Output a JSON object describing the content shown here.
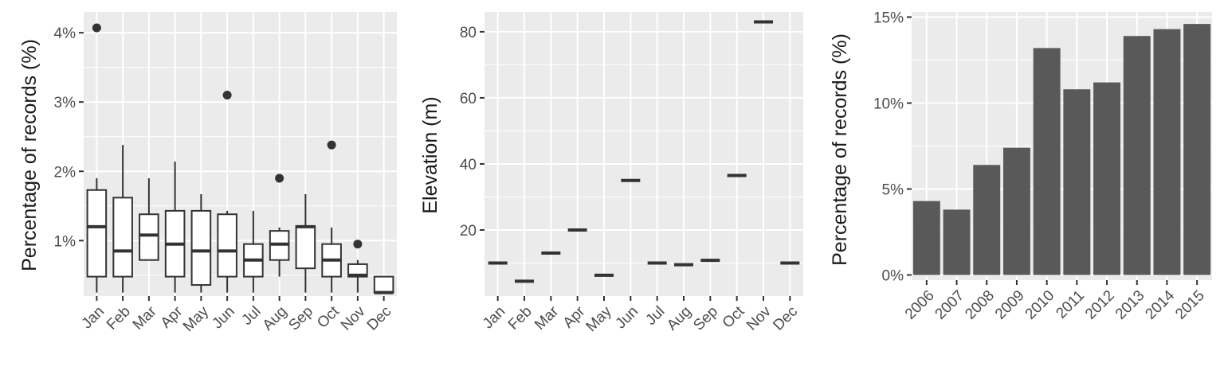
{
  "colors": {
    "panel_bg": "#ebebeb",
    "grid": "#ffffff",
    "tick": "#333333",
    "dark": "#333333",
    "bar_fill": "#595959",
    "box_fill": "#ffffff",
    "text": "#4d4d4d",
    "title": "#1a1a1a"
  },
  "chart_data": [
    {
      "type": "box",
      "ylabel": "Percentage of records (%)",
      "categories": [
        "Jan",
        "Feb",
        "Mar",
        "Apr",
        "May",
        "Jun",
        "Jul",
        "Aug",
        "Sep",
        "Oct",
        "Nov",
        "Dec"
      ],
      "yticks": [
        {
          "value": 1,
          "label": "1%"
        },
        {
          "value": 2,
          "label": "2%"
        },
        {
          "value": 3,
          "label": "3%"
        },
        {
          "value": 4,
          "label": "4%"
        }
      ],
      "ylim": [
        0.2,
        4.3
      ],
      "boxes": [
        {
          "low": 0.25,
          "q1": 0.48,
          "median": 1.2,
          "q3": 1.73,
          "high": 1.9,
          "outliers": [
            4.07
          ]
        },
        {
          "low": 0.25,
          "q1": 0.48,
          "median": 0.85,
          "q3": 1.62,
          "high": 2.38,
          "outliers": []
        },
        {
          "low": 0.72,
          "q1": 0.72,
          "median": 1.08,
          "q3": 1.38,
          "high": 1.9,
          "outliers": []
        },
        {
          "low": 0.25,
          "q1": 0.48,
          "median": 0.95,
          "q3": 1.43,
          "high": 2.14,
          "outliers": []
        },
        {
          "low": 0.25,
          "q1": 0.36,
          "median": 0.85,
          "q3": 1.43,
          "high": 1.67,
          "outliers": []
        },
        {
          "low": 0.25,
          "q1": 0.48,
          "median": 0.85,
          "q3": 1.38,
          "high": 1.43,
          "outliers": [
            3.1
          ]
        },
        {
          "low": 0.25,
          "q1": 0.48,
          "median": 0.72,
          "q3": 0.95,
          "high": 1.43,
          "outliers": []
        },
        {
          "low": 0.48,
          "q1": 0.72,
          "median": 0.95,
          "q3": 1.14,
          "high": 1.19,
          "outliers": [
            1.9
          ]
        },
        {
          "low": 0.25,
          "q1": 0.6,
          "median": 1.2,
          "q3": 1.21,
          "high": 1.67,
          "outliers": []
        },
        {
          "low": 0.25,
          "q1": 0.48,
          "median": 0.72,
          "q3": 0.95,
          "high": 1.19,
          "outliers": [
            2.38
          ]
        },
        {
          "low": 0.25,
          "q1": 0.48,
          "median": 0.5,
          "q3": 0.66,
          "high": 0.72,
          "outliers": [
            0.95
          ]
        },
        {
          "low": 0.25,
          "q1": 0.25,
          "median": 0.25,
          "q3": 0.48,
          "high": 0.48,
          "outliers": []
        }
      ]
    },
    {
      "type": "box",
      "ylabel": "Elevation (m)",
      "categories": [
        "Jan",
        "Feb",
        "Mar",
        "Apr",
        "May",
        "Jun",
        "Jul",
        "Aug",
        "Sep",
        "Oct",
        "Nov",
        "Dec"
      ],
      "yticks": [
        {
          "value": 20,
          "label": "20"
        },
        {
          "value": 40,
          "label": "40"
        },
        {
          "value": 60,
          "label": "60"
        },
        {
          "value": 80,
          "label": "80"
        }
      ],
      "ylim": [
        0,
        86
      ],
      "values": [
        10,
        4.5,
        13,
        20,
        6.3,
        35,
        10,
        9.5,
        10.8,
        36.5,
        83,
        10
      ]
    },
    {
      "type": "bar",
      "ylabel": "Percentage of records (%)",
      "categories": [
        "2006",
        "2007",
        "2008",
        "2009",
        "2010",
        "2011",
        "2012",
        "2013",
        "2014",
        "2015"
      ],
      "values": [
        4.3,
        3.8,
        6.4,
        7.4,
        13.2,
        10.8,
        11.2,
        13.9,
        14.3,
        14.6
      ],
      "yticks": [
        {
          "value": 0,
          "label": "0%"
        },
        {
          "value": 5,
          "label": "5%"
        },
        {
          "value": 10,
          "label": "10%"
        },
        {
          "value": 15,
          "label": "15%"
        }
      ],
      "ylim": [
        -0.3,
        15.3
      ]
    }
  ]
}
